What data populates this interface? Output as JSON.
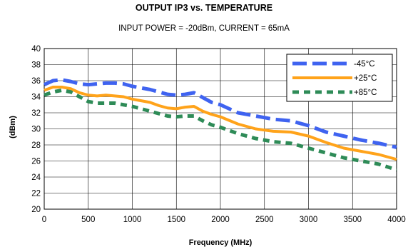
{
  "chart_data": {
    "type": "line",
    "title": "OUTPUT IP3 vs. TEMPERATURE",
    "subtitle": "INPUT POWER = -20dBm, CURRENT =  65mA",
    "xlabel": "Frequency (MHz)",
    "ylabel": "(dBm)",
    "xlim": [
      0,
      4000
    ],
    "ylim": [
      20,
      40
    ],
    "xticks": [
      0,
      500,
      1000,
      1500,
      2000,
      2500,
      3000,
      3500,
      4000
    ],
    "yticks": [
      20,
      22,
      24,
      26,
      28,
      30,
      32,
      34,
      36,
      38,
      40
    ],
    "grid": true,
    "legend_position": "top-right",
    "series": [
      {
        "name": "-45°C",
        "color": "#3f63f0",
        "style": "dashed",
        "x": [
          0,
          100,
          200,
          300,
          400,
          500,
          600,
          700,
          800,
          900,
          1000,
          1100,
          1200,
          1300,
          1400,
          1500,
          1600,
          1700,
          1800,
          1900,
          2000,
          2200,
          2400,
          2600,
          2800,
          3000,
          3200,
          3400,
          3600,
          3800,
          4000
        ],
        "values": [
          35.5,
          36.0,
          36.1,
          35.9,
          35.6,
          35.5,
          35.6,
          35.7,
          35.7,
          35.6,
          35.3,
          35.1,
          34.9,
          34.6,
          34.3,
          34.2,
          34.3,
          34.5,
          33.9,
          33.3,
          33.0,
          32.0,
          31.6,
          31.2,
          31.0,
          30.4,
          29.6,
          29.1,
          28.6,
          28.2,
          27.7
        ]
      },
      {
        "name": "+25°C",
        "color": "#ffa31a",
        "style": "solid",
        "x": [
          0,
          100,
          200,
          300,
          400,
          500,
          600,
          700,
          800,
          900,
          1000,
          1100,
          1200,
          1300,
          1400,
          1500,
          1600,
          1700,
          1800,
          1900,
          2000,
          2200,
          2400,
          2600,
          2800,
          3000,
          3200,
          3400,
          3600,
          3800,
          4000
        ],
        "values": [
          34.8,
          35.2,
          35.2,
          35.0,
          34.5,
          34.2,
          34.1,
          34.2,
          34.1,
          34.0,
          33.7,
          33.5,
          33.3,
          32.9,
          32.6,
          32.5,
          32.7,
          32.8,
          32.2,
          31.8,
          31.5,
          30.6,
          30.0,
          29.7,
          29.6,
          29.1,
          28.3,
          27.6,
          27.2,
          26.8,
          26.2
        ]
      },
      {
        "name": "+85°C",
        "color": "#2e8b57",
        "style": "dashed",
        "x": [
          0,
          100,
          200,
          300,
          400,
          500,
          600,
          700,
          800,
          900,
          1000,
          1100,
          1200,
          1300,
          1400,
          1500,
          1600,
          1700,
          1800,
          1900,
          2000,
          2200,
          2400,
          2600,
          2800,
          3000,
          3200,
          3400,
          3600,
          3800,
          4000
        ],
        "values": [
          34.2,
          34.6,
          34.8,
          34.6,
          34.0,
          33.4,
          33.2,
          33.2,
          33.2,
          33.0,
          32.8,
          32.5,
          32.2,
          31.9,
          31.6,
          31.5,
          31.6,
          31.6,
          31.0,
          30.5,
          30.2,
          29.4,
          28.8,
          28.4,
          28.2,
          27.6,
          27.0,
          26.4,
          26.0,
          25.6,
          24.9
        ]
      }
    ]
  }
}
